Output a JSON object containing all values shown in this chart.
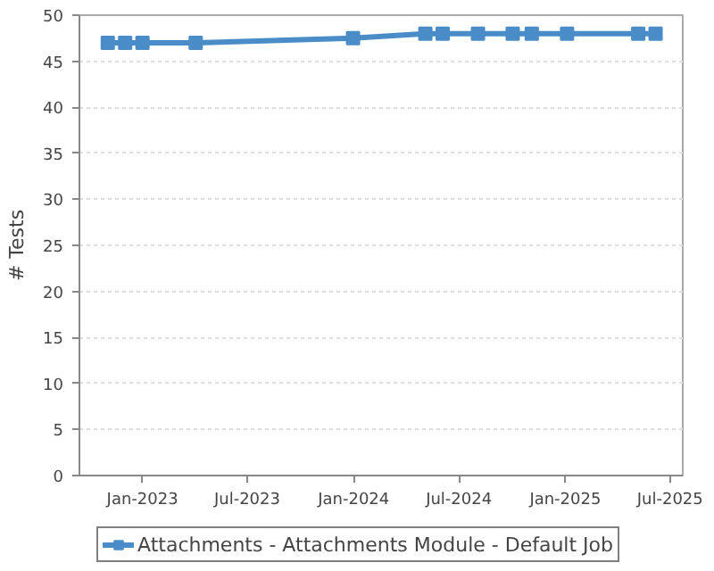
{
  "chart_data": {
    "type": "line",
    "ylabel": "# Tests",
    "x": [
      "2022-11-02",
      "2022-12-02",
      "2023-01-01",
      "2023-04-03",
      "2023-12-31",
      "2024-05-04",
      "2024-06-03",
      "2024-08-03",
      "2024-10-02",
      "2024-11-04",
      "2025-01-04",
      "2025-05-07",
      "2025-06-06"
    ],
    "series": [
      {
        "name": "Attachments - Attachments Module - Default Job",
        "color": "#4a8cc8",
        "values": [
          47,
          47,
          47,
          47,
          47.5,
          48,
          48,
          48,
          48,
          48,
          48,
          48,
          48
        ]
      }
    ],
    "xlim": [
      "2022-09-14",
      "2025-07-23"
    ],
    "xticks": [
      {
        "value": "2023-01-01",
        "label": "Jan-2023"
      },
      {
        "value": "2023-07-01",
        "label": "Jul-2023"
      },
      {
        "value": "2024-01-01",
        "label": "Jan-2024"
      },
      {
        "value": "2024-07-01",
        "label": "Jul-2024"
      },
      {
        "value": "2025-01-01",
        "label": "Jan-2025"
      },
      {
        "value": "2025-07-01",
        "label": "Jul-2025"
      }
    ],
    "ylim": [
      0,
      50
    ],
    "yticks": [
      0,
      5,
      10,
      15,
      20,
      25,
      30,
      35,
      40,
      45,
      50
    ],
    "grid": "y",
    "legend": "bottom",
    "marker": "square",
    "line_style": "solid"
  }
}
